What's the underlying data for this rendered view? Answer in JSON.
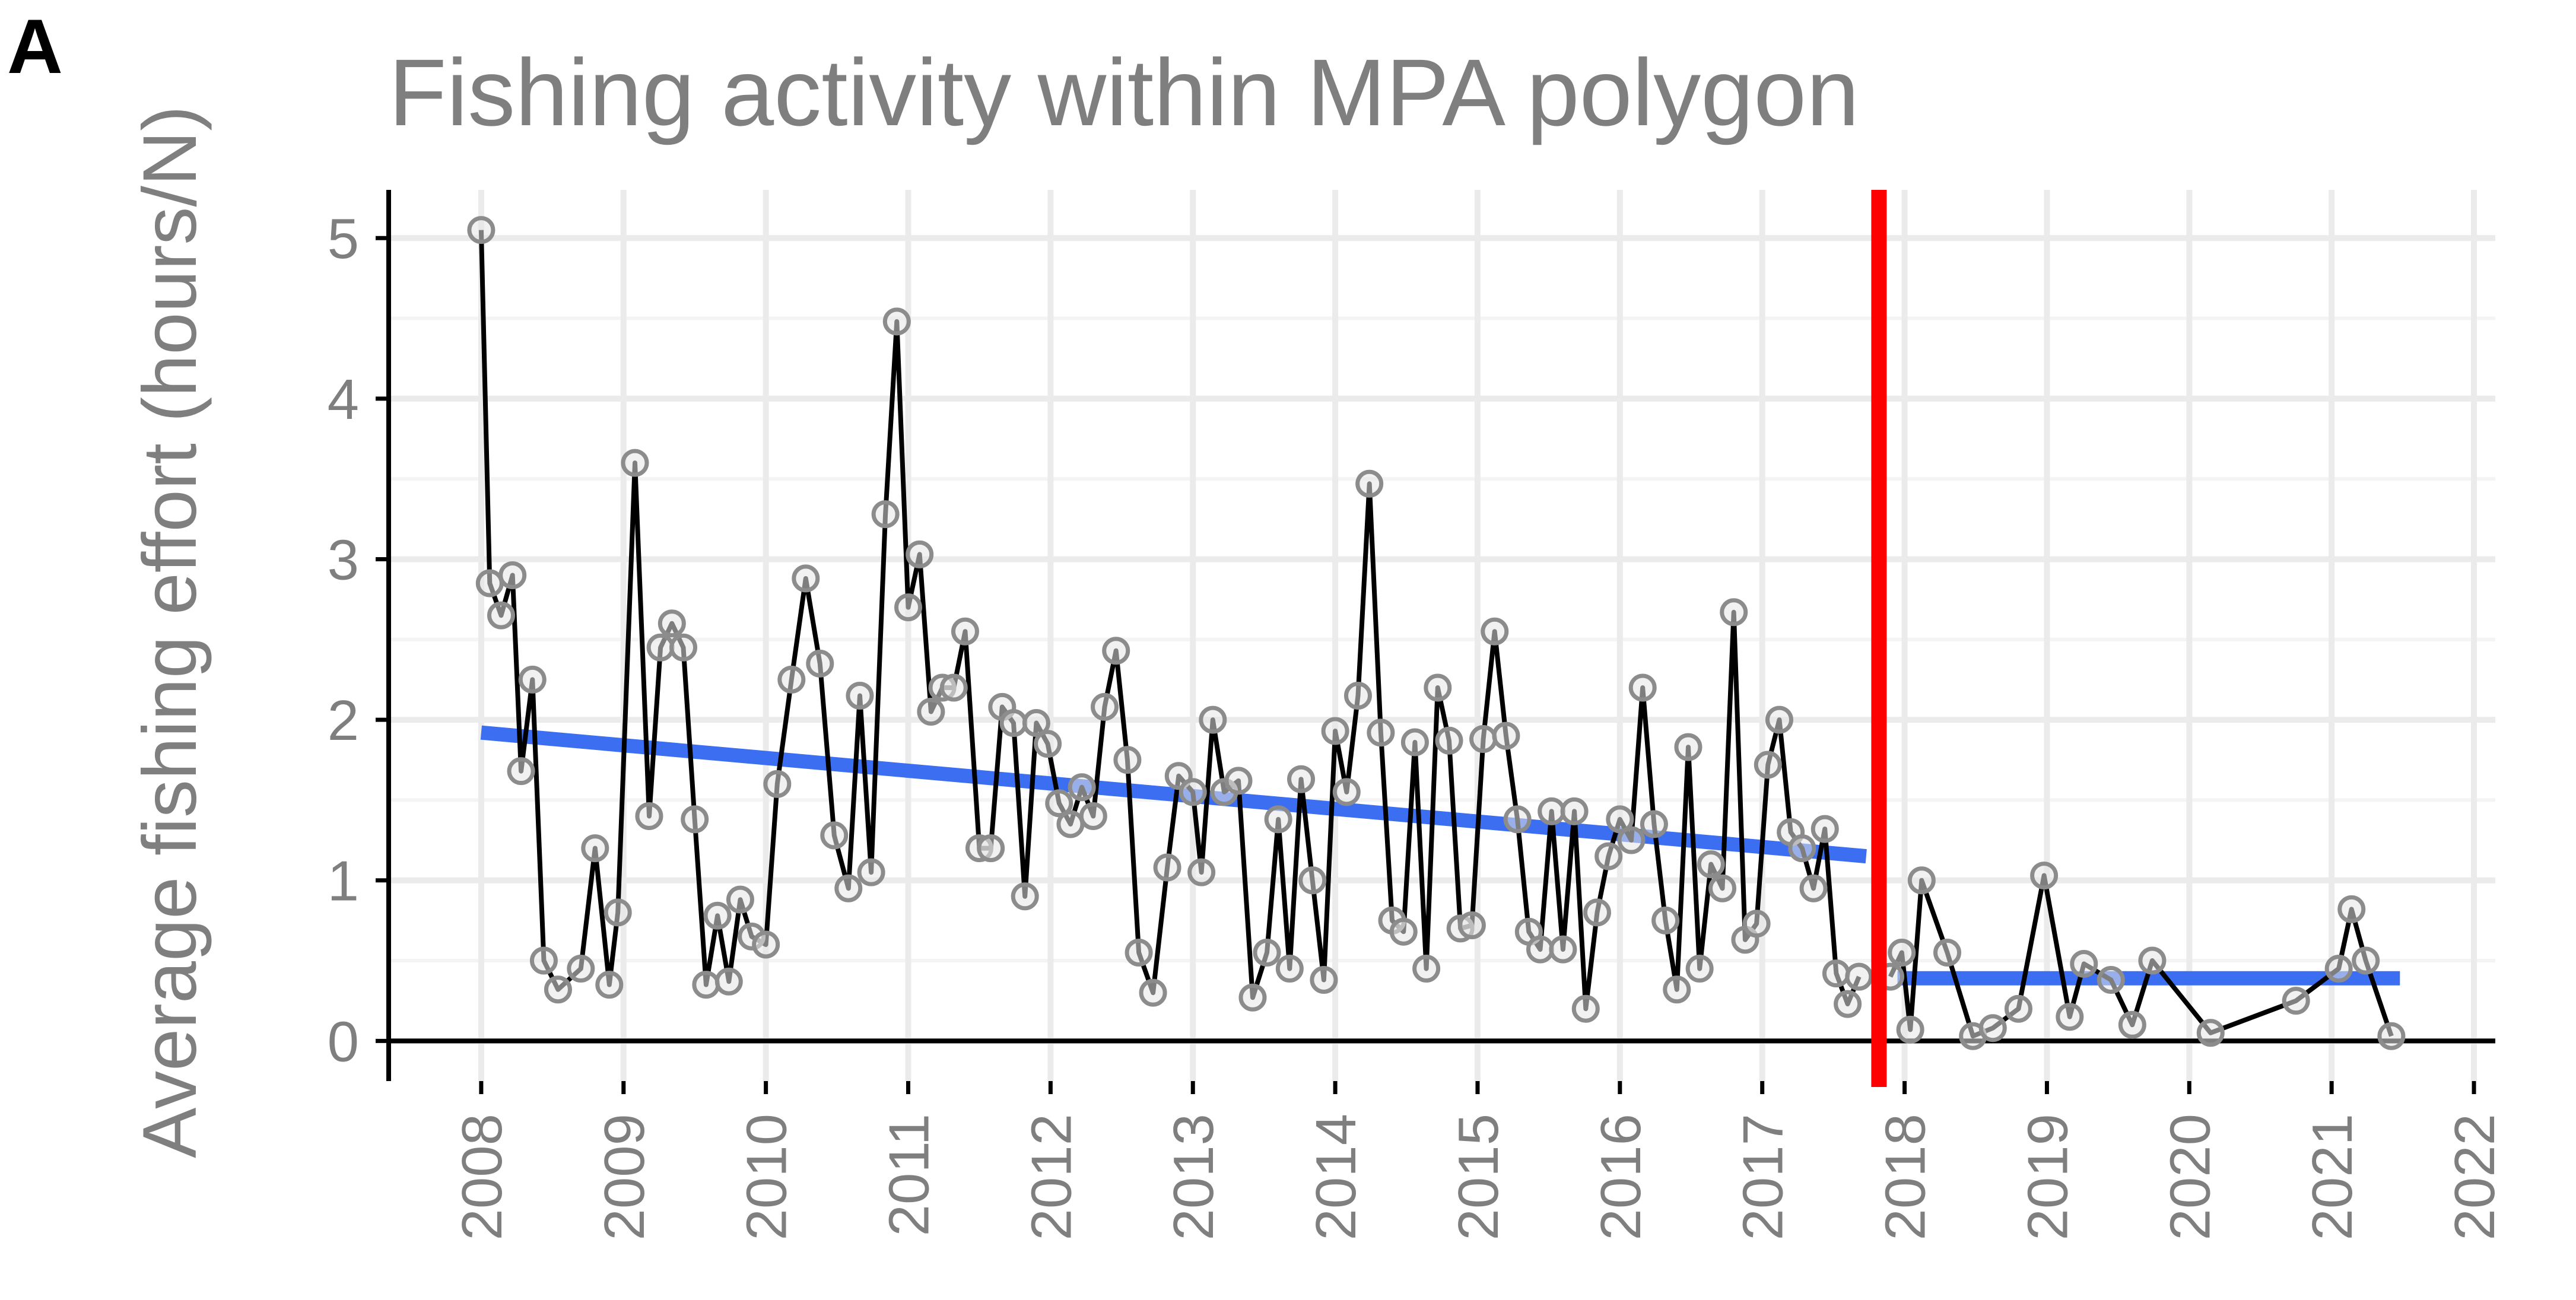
{
  "panel_label": "A",
  "chart_data": {
    "type": "line",
    "title": "Fishing activity within MPA polygon",
    "xlabel": "",
    "ylabel": "Average fishing effort (hours/N)",
    "x_unit": "year",
    "xlim": [
      2007.35,
      2022.15
    ],
    "ylim": [
      -0.25,
      5.3
    ],
    "x_ticks": [
      2008,
      2009,
      2010,
      2011,
      2012,
      2013,
      2014,
      2015,
      2016,
      2017,
      2018,
      2019,
      2020,
      2021,
      2022
    ],
    "y_ticks": [
      0,
      1,
      2,
      3,
      4,
      5
    ],
    "grid": true,
    "colors": {
      "series_line": "#000000",
      "point_stroke": "#8c8c8c",
      "point_fill": "#e6e6e6",
      "trend": "#3b6ef0",
      "intervention": "#ff0000",
      "grid": "#ebebeb",
      "axis": "#000000",
      "text": "#7f7f7f"
    },
    "series": [
      {
        "x": [
          2008.0,
          2008.06,
          2008.14,
          2008.22,
          2008.28,
          2008.36,
          2008.44,
          2008.54,
          2008.7,
          2008.8,
          2008.9,
          2008.96,
          2009.08,
          2009.18,
          2009.26,
          2009.34,
          2009.42,
          2009.5,
          2009.58,
          2009.66,
          2009.74,
          2009.82,
          2009.9,
          2010.0,
          2010.08,
          2010.18,
          2010.28,
          2010.38,
          2010.48,
          2010.58,
          2010.66,
          2010.74,
          2010.84,
          2010.92,
          2011.0,
          2011.08,
          2011.16,
          2011.24,
          2011.32,
          2011.4,
          2011.5,
          2011.58,
          2011.66,
          2011.74,
          2011.82,
          2011.9,
          2011.98,
          2012.06,
          2012.14,
          2012.22,
          2012.3,
          2012.38,
          2012.46,
          2012.54,
          2012.62,
          2012.72,
          2012.82,
          2012.9,
          2013.0,
          2013.06,
          2013.14,
          2013.22,
          2013.32,
          2013.42,
          2013.52,
          2013.6,
          2013.68,
          2013.76,
          2013.84,
          2013.92,
          2014.0,
          2014.08,
          2014.16,
          2014.24,
          2014.32,
          2014.4,
          2014.48,
          2014.56,
          2014.64,
          2014.72,
          2014.8,
          2014.88,
          2014.96,
          2015.04,
          2015.12,
          2015.2,
          2015.28,
          2015.36,
          2015.44,
          2015.52,
          2015.6,
          2015.68,
          2015.76,
          2015.84,
          2015.92,
          2016.0,
          2016.08,
          2016.16,
          2016.24,
          2016.32,
          2016.4,
          2016.48,
          2016.56,
          2016.64,
          2016.72,
          2016.8,
          2016.88,
          2016.96,
          2017.04,
          2017.12,
          2017.2,
          2017.28,
          2017.36,
          2017.44,
          2017.52,
          2017.6,
          2017.68
        ],
        "values": [
          5.05,
          2.85,
          2.65,
          2.9,
          1.68,
          2.25,
          0.5,
          0.32,
          0.45,
          1.2,
          0.35,
          0.8,
          3.6,
          1.4,
          2.45,
          2.6,
          2.45,
          1.38,
          0.35,
          0.78,
          0.37,
          0.88,
          0.65,
          0.6,
          1.6,
          2.25,
          2.88,
          2.35,
          1.28,
          0.95,
          2.15,
          1.05,
          3.28,
          4.48,
          2.7,
          3.03,
          2.05,
          2.2,
          2.2,
          2.55,
          1.2,
          1.2,
          2.08,
          1.98,
          0.9,
          1.98,
          1.85,
          1.48,
          1.35,
          1.58,
          1.4,
          2.08,
          2.43,
          1.75,
          0.55,
          0.3,
          1.08,
          1.65,
          1.55,
          1.05,
          2.0,
          1.55,
          1.62,
          0.27,
          0.55,
          1.38,
          0.45,
          1.63,
          1.0,
          0.38,
          1.93,
          1.55,
          2.15,
          3.47,
          1.92,
          0.75,
          0.68,
          1.86,
          0.45,
          2.2,
          1.87,
          0.7,
          0.72,
          1.88,
          2.55,
          1.9,
          1.38,
          0.68,
          0.57,
          1.43,
          0.57,
          1.43,
          0.2,
          0.8,
          1.15,
          1.38,
          1.25,
          2.2,
          1.35,
          0.75,
          0.32,
          1.83,
          0.45,
          1.1,
          0.95,
          2.67,
          0.63,
          0.73,
          1.72,
          2.0,
          1.3,
          1.2,
          0.95,
          1.32,
          0.42,
          0.23,
          0.4
        ]
      },
      {
        "x": [
          2017.9,
          2017.98,
          2018.04,
          2018.12,
          2018.3,
          2018.48,
          2018.62,
          2018.8,
          2018.98,
          2019.16,
          2019.26,
          2019.45,
          2019.6,
          2019.74,
          2020.15,
          2020.75,
          2021.05,
          2021.14,
          2021.24,
          2021.42
        ],
        "values": [
          0.4,
          0.55,
          0.07,
          1.0,
          0.55,
          0.03,
          0.08,
          0.2,
          1.03,
          0.15,
          0.48,
          0.38,
          0.1,
          0.5,
          0.05,
          0.25,
          0.45,
          0.82,
          0.5,
          0.03
        ]
      }
    ],
    "trend_lines": [
      {
        "x": [
          2008.0,
          2017.73
        ],
        "values": [
          1.92,
          1.15
        ]
      },
      {
        "x": [
          2017.95,
          2021.48
        ],
        "values": [
          0.39,
          0.39
        ]
      }
    ],
    "intervention_x": 2017.82
  }
}
